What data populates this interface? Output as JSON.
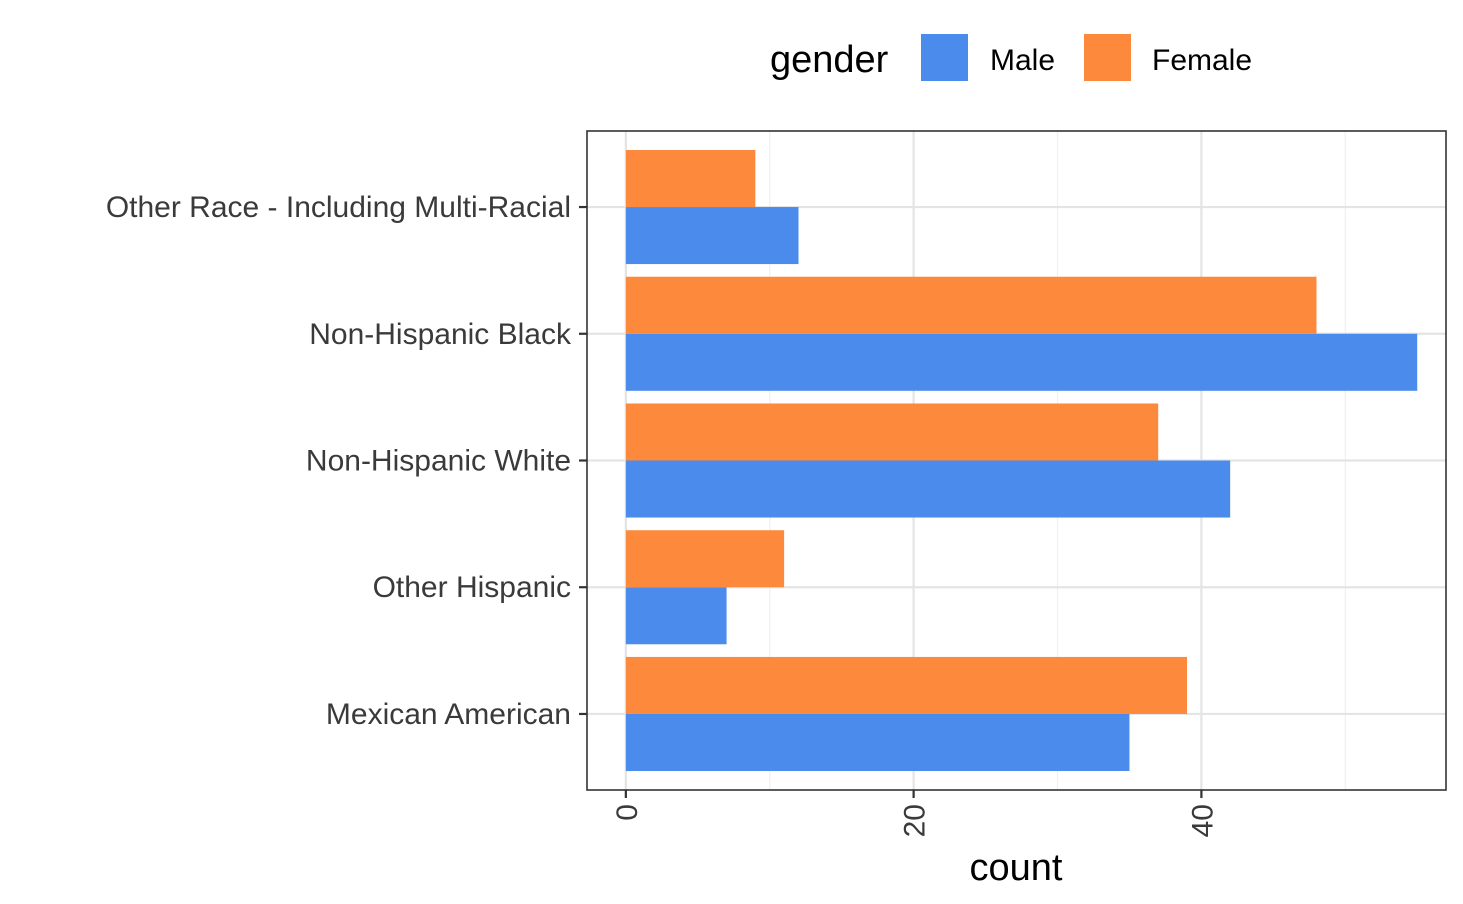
{
  "chart_data": {
    "type": "bar",
    "orientation": "horizontal",
    "categories": [
      "Mexican American",
      "Other Hispanic",
      "Non-Hispanic White",
      "Non-Hispanic Black",
      "Other Race - Including Multi-Racial"
    ],
    "series": [
      {
        "name": "Male",
        "color": "#4a8bec",
        "values": [
          35,
          7,
          42,
          55,
          12
        ]
      },
      {
        "name": "Female",
        "color": "#fd8a3c",
        "values": [
          39,
          11,
          37,
          48,
          9
        ]
      }
    ],
    "xlabel": "count",
    "ylabel": "",
    "xlim": [
      -2.7,
      57
    ],
    "xticks": [
      0,
      20,
      40
    ],
    "xtick_labels": [
      "0",
      "20",
      "40"
    ],
    "legend": {
      "title": "gender",
      "position": "top"
    },
    "grid": true
  }
}
